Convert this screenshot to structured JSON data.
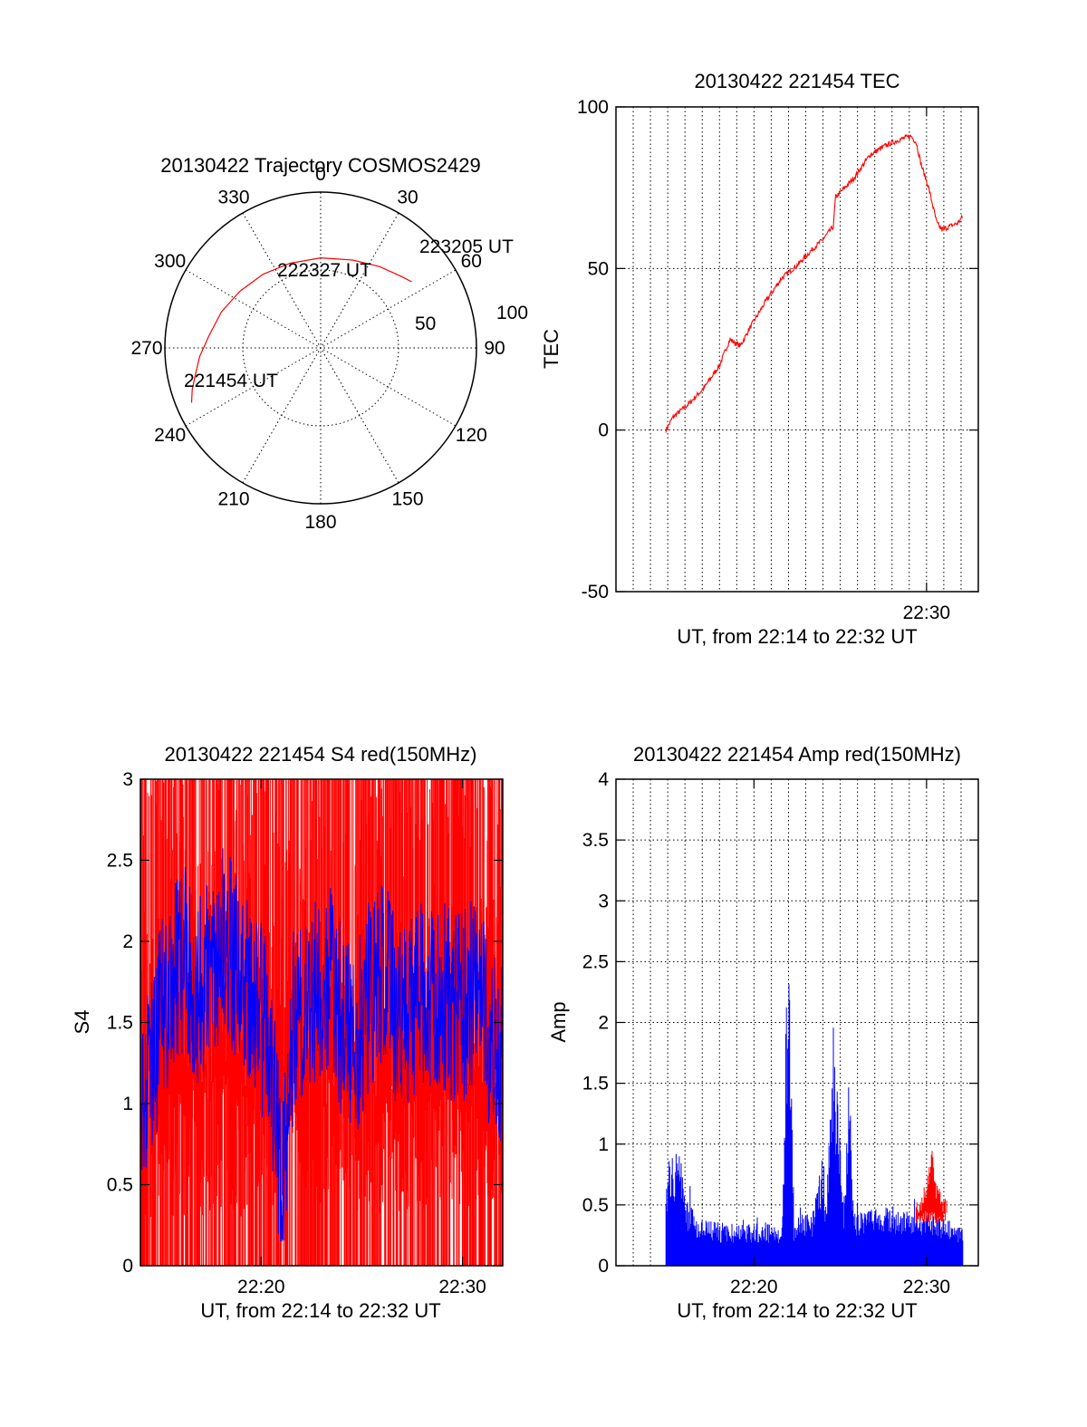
{
  "chart_data": [
    {
      "type": "polar",
      "title": "20130422 Trajectory COSMOS2429",
      "azimuth_labels": [
        "0",
        "30",
        "60",
        "90",
        "120",
        "150",
        "180",
        "210",
        "240",
        "270",
        "300",
        "330"
      ],
      "radial_labels": [
        "50",
        "100"
      ],
      "series": [
        {
          "color": "#ff0000",
          "points": [
            {
              "az": 247,
              "el": 9
            },
            {
              "az": 252,
              "el": 12
            },
            {
              "az": 258,
              "el": 16
            },
            {
              "az": 266,
              "el": 20
            },
            {
              "az": 276,
              "el": 25
            },
            {
              "az": 290,
              "el": 29
            },
            {
              "az": 305,
              "el": 33
            },
            {
              "az": 322,
              "el": 36
            },
            {
              "az": 340,
              "el": 38
            },
            {
              "az": 0,
              "el": 38
            },
            {
              "az": 20,
              "el": 36
            },
            {
              "az": 36,
              "el": 32
            },
            {
              "az": 48,
              "el": 28
            },
            {
              "az": 54,
              "el": 25
            }
          ]
        }
      ],
      "annotations": [
        {
          "text": "221454 UT",
          "az": 247,
          "el": 9
        },
        {
          "text": "222327 UT",
          "az": 22,
          "el": 58
        },
        {
          "text": "223205 UT",
          "az": 54,
          "el": 25
        }
      ]
    },
    {
      "type": "line",
      "title": "20130422 221454 TEC",
      "xlabel": "UT, from 22:14 to 22:32 UT",
      "ylabel": "TEC",
      "xlim": [
        22.2,
        22.55
      ],
      "ylim": [
        -50,
        100
      ],
      "yticks": [
        -50,
        0,
        50,
        100
      ],
      "xticks": [
        {
          "value": 22.5,
          "label": "22:30"
        }
      ],
      "grid": true,
      "series": [
        {
          "color": "#ff0000",
          "x": [
            22.2483,
            22.255,
            22.27,
            22.285,
            22.3,
            22.31,
            22.315,
            22.32,
            22.33,
            22.345,
            22.36,
            22.375,
            22.39,
            22.4,
            22.41,
            22.412,
            22.43,
            22.445,
            22.46,
            22.475,
            22.485,
            22.49,
            22.495,
            22.502,
            22.51,
            22.515,
            22.522,
            22.53,
            22.535
          ],
          "values": [
            0,
            4,
            8,
            13,
            20,
            28,
            27,
            26,
            32,
            40,
            47,
            51,
            56,
            59,
            63,
            72,
            78,
            85,
            88,
            90,
            91,
            89,
            82,
            75,
            64,
            62,
            63,
            64,
            66
          ]
        }
      ]
    },
    {
      "type": "line",
      "title": "20130422 221454 S4 red(150MHz)",
      "xlabel": "UT, from 22:14 to 22:32 UT",
      "ylabel": "S4",
      "xlim": [
        22.2333,
        22.5333
      ],
      "ylim": [
        0,
        3
      ],
      "yticks": [
        0,
        0.5,
        1,
        1.5,
        2,
        2.5,
        3
      ],
      "ytick_labels": [
        "0",
        "0.5",
        "1",
        "1.5",
        "2",
        "2.5",
        "3"
      ],
      "xticks": [
        {
          "value": 22.3333,
          "label": "22:20"
        },
        {
          "value": 22.5,
          "label": "22:30"
        }
      ],
      "grid": false,
      "series": [
        {
          "color": "#0000ff",
          "x": [
            22.2333,
            22.24,
            22.25,
            22.26,
            22.27,
            22.28,
            22.29,
            22.3,
            22.31,
            22.32,
            22.33,
            22.34,
            22.35,
            22.36,
            22.37,
            22.38,
            22.39,
            22.4,
            22.41,
            22.42,
            22.43,
            22.44,
            22.45,
            22.46,
            22.47,
            22.48,
            22.49,
            22.5,
            22.51,
            22.52,
            22.5333
          ],
          "values": [
            1.1,
            1.2,
            1.5,
            1.8,
            1.9,
            1.7,
            1.8,
            2.0,
            1.9,
            1.7,
            1.6,
            1.4,
            0.4,
            1.5,
            1.6,
            1.7,
            1.8,
            1.5,
            1.3,
            1.6,
            1.8,
            1.7,
            1.5,
            1.6,
            1.7,
            1.7,
            1.6,
            1.6,
            1.7,
            1.5,
            1.3
          ]
        },
        {
          "color": "#ff0000",
          "x": [
            22.2333,
            22.5333
          ],
          "values": [
            0,
            3
          ],
          "note_style": "dense"
        }
      ]
    },
    {
      "type": "bar",
      "title": "20130422 221454 Amp red(150MHz)",
      "xlabel": "UT, from 22:14 to 22:32 UT",
      "ylabel": "Amp",
      "xlim": [
        22.2,
        22.55
      ],
      "ylim": [
        0,
        4
      ],
      "yticks": [
        0,
        0.5,
        1,
        1.5,
        2,
        2.5,
        3,
        3.5,
        4
      ],
      "ytick_labels": [
        "0",
        "0.5",
        "1",
        "1.5",
        "2",
        "2.5",
        "3",
        "3.5",
        "4"
      ],
      "xticks": [
        {
          "value": 22.3333,
          "label": "22:20"
        },
        {
          "value": 22.5,
          "label": "22:30"
        }
      ],
      "grid": true,
      "series": [
        {
          "color": "#0000ff",
          "x": [
            22.2483,
            22.255,
            22.262,
            22.27,
            22.28,
            22.3,
            22.32,
            22.34,
            22.36,
            22.365,
            22.368,
            22.372,
            22.38,
            22.39,
            22.4,
            22.403,
            22.41,
            22.415,
            22.42,
            22.425,
            22.43,
            22.44,
            22.46,
            22.48,
            22.5,
            22.52,
            22.535
          ],
          "values": [
            0.75,
            0.95,
            0.85,
            0.5,
            0.36,
            0.34,
            0.32,
            0.35,
            0.3,
            2.35,
            2.2,
            0.35,
            0.4,
            0.42,
            0.95,
            0.5,
            1.95,
            1.2,
            0.5,
            1.5,
            0.45,
            0.42,
            0.5,
            0.45,
            0.42,
            0.38,
            0.33
          ]
        },
        {
          "color": "#ff0000",
          "x": [
            22.49,
            22.495,
            22.5,
            22.505,
            22.51,
            22.515,
            22.52
          ],
          "values": [
            0.5,
            0.6,
            0.7,
            1.0,
            0.7,
            0.6,
            0.5
          ]
        }
      ]
    }
  ]
}
